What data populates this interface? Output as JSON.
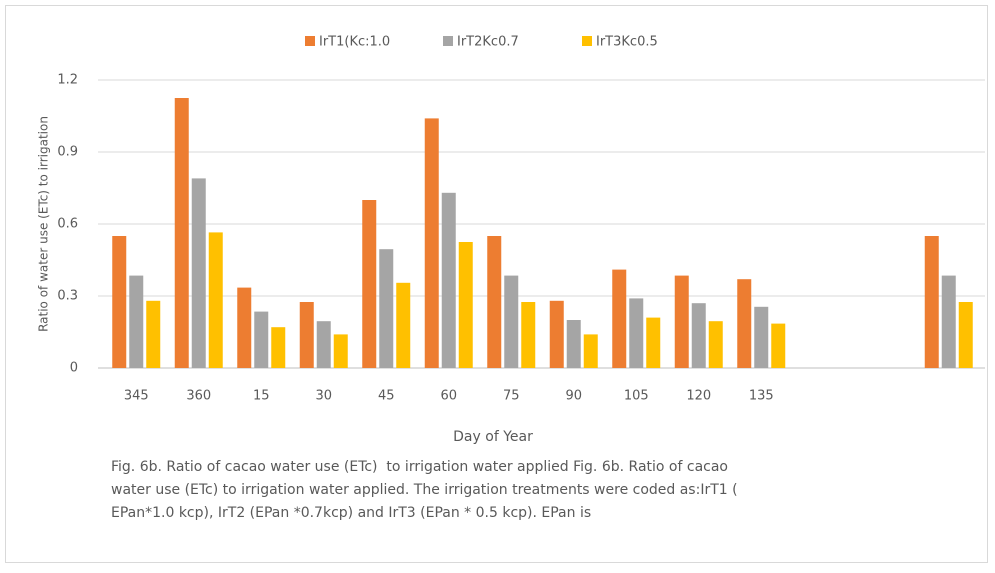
{
  "chart_data": {
    "type": "bar",
    "x_label": "Day of Year",
    "y_label": "Ratio of water use (ETc) to irrigation",
    "caption": [
      "Fig. 6b. Ratio of cacao water use (ETc)  to irrigation water applied Fig. 6b. Ratio of cacao",
      "water use (ETc) to irrigation water applied. The irrigation treatments were coded as:IrT1 (",
      "EPan*1.0 kcp), IrT2 (EPan *0.7kcp) and IrT3 (EPan * 0.5 kcp). EPan is"
    ],
    "categories": [
      "345",
      "360",
      "15",
      "30",
      "45",
      "60",
      "75",
      "90",
      "105",
      "120",
      "135",
      null,
      null,
      null
    ],
    "series": [
      {
        "name": "IrT1(Kc:1.0",
        "color": "#ED7D31",
        "values": [
          0.55,
          1.125,
          0.335,
          0.275,
          0.7,
          1.04,
          0.55,
          0.28,
          0.41,
          0.385,
          0.37,
          null,
          null,
          0.55
        ]
      },
      {
        "name": "IrT2Kc0.7",
        "color": "#A5A5A5",
        "values": [
          0.385,
          0.79,
          0.235,
          0.195,
          0.495,
          0.73,
          0.385,
          0.2,
          0.29,
          0.27,
          0.255,
          null,
          null,
          0.385
        ]
      },
      {
        "name": "IrT3Kc0.5",
        "color": "#FFC000",
        "values": [
          0.28,
          0.565,
          0.17,
          0.14,
          0.355,
          0.525,
          0.275,
          0.14,
          0.21,
          0.195,
          0.185,
          null,
          null,
          0.275
        ]
      }
    ],
    "ylim": [
      0,
      1.2
    ],
    "yticks": [
      0,
      0.3,
      0.6,
      0.9,
      1.2
    ],
    "grid": true,
    "legend": "top"
  }
}
